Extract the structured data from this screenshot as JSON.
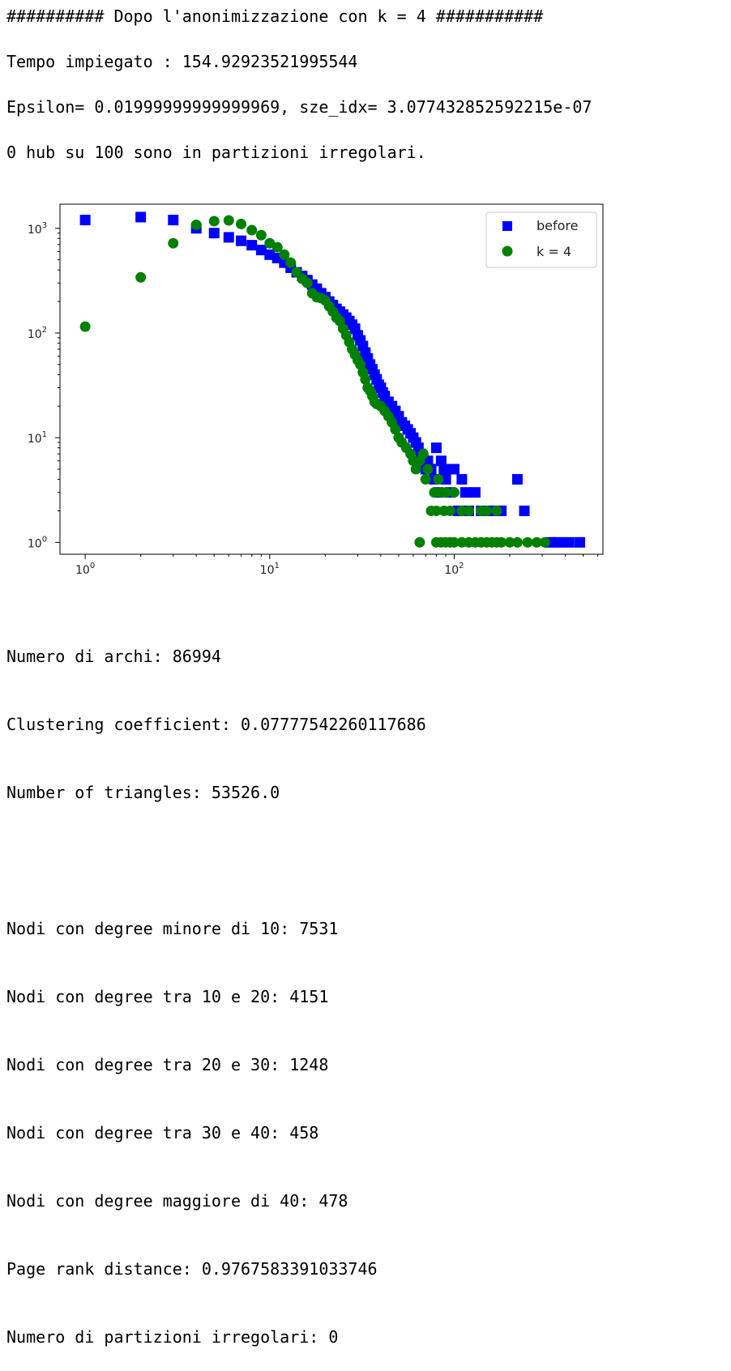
{
  "output": {
    "header": "########## Dopo l'anonimizzazione con k = 4 ###########",
    "time": "Tempo impiegato : 154.92923521995544",
    "epsilon": "Epsilon= 0.01999999999999969, sze_idx= 3.077432852592215e-07",
    "hubs": "0 hub su 100 sono in partizioni irregolari."
  },
  "stats": {
    "archi": "Numero di archi: 86994",
    "clustering": "Clustering coefficient: 0.07777542260117686",
    "triangles": "Number of triangles: 53526.0",
    "deg_lt10": "Nodi con degree minore di 10: 7531",
    "deg_10_20": "Nodi con degree tra 10 e 20: 4151",
    "deg_20_30": "Nodi con degree tra 20 e 30: 1248",
    "deg_30_40": "Nodi con degree tra 30 e 40: 458",
    "deg_gt40": "Nodi con degree maggiore di 40: 478",
    "pagerank": "Page rank distance: 0.9767583391033746",
    "partitions": "Numero di partizioni irregolari: 0"
  },
  "chart_data": {
    "type": "scatter",
    "xscale": "log",
    "yscale": "log",
    "xlim": [
      0.73,
      640
    ],
    "ylim": [
      0.77,
      1700
    ],
    "xticks": [
      {
        "v": 1,
        "b": "10",
        "e": "0"
      },
      {
        "v": 10,
        "b": "10",
        "e": "1"
      },
      {
        "v": 100,
        "b": "10",
        "e": "2"
      }
    ],
    "yticks": [
      {
        "v": 1,
        "b": "10",
        "e": "0"
      },
      {
        "v": 10,
        "b": "10",
        "e": "1"
      },
      {
        "v": 100,
        "b": "10",
        "e": "2"
      },
      {
        "v": 1000,
        "b": "10",
        "e": "3"
      }
    ],
    "legend": "top-right",
    "series": [
      {
        "name": "before",
        "marker": "square",
        "color": "#0000ff",
        "points": [
          [
            1,
            1200
          ],
          [
            2,
            1280
          ],
          [
            3,
            1200
          ],
          [
            4,
            1000
          ],
          [
            5,
            900
          ],
          [
            6,
            820
          ],
          [
            7,
            760
          ],
          [
            8,
            690
          ],
          [
            9,
            620
          ],
          [
            10,
            560
          ],
          [
            11,
            520
          ],
          [
            12,
            470
          ],
          [
            13,
            420
          ],
          [
            14,
            380
          ],
          [
            15,
            350
          ],
          [
            16,
            320
          ],
          [
            17,
            290
          ],
          [
            18,
            265
          ],
          [
            19,
            240
          ],
          [
            20,
            220
          ],
          [
            21,
            200
          ],
          [
            22,
            185
          ],
          [
            23,
            170
          ],
          [
            24,
            160
          ],
          [
            25,
            150
          ],
          [
            26,
            140
          ],
          [
            27,
            130
          ],
          [
            28,
            120
          ],
          [
            29,
            110
          ],
          [
            30,
            95
          ],
          [
            31,
            85
          ],
          [
            32,
            75
          ],
          [
            33,
            65
          ],
          [
            34,
            57
          ],
          [
            35,
            50
          ],
          [
            36,
            45
          ],
          [
            37,
            40
          ],
          [
            38,
            36
          ],
          [
            39,
            32
          ],
          [
            40,
            30
          ],
          [
            41,
            27
          ],
          [
            42,
            25
          ],
          [
            44,
            22
          ],
          [
            46,
            20
          ],
          [
            48,
            18
          ],
          [
            50,
            16
          ],
          [
            52,
            14
          ],
          [
            54,
            13
          ],
          [
            56,
            12
          ],
          [
            58,
            11
          ],
          [
            60,
            10
          ],
          [
            62,
            9
          ],
          [
            64,
            8
          ],
          [
            66,
            7
          ],
          [
            68,
            6
          ],
          [
            70,
            5
          ],
          [
            72,
            6
          ],
          [
            75,
            5
          ],
          [
            78,
            4
          ],
          [
            80,
            8
          ],
          [
            82,
            3
          ],
          [
            85,
            6
          ],
          [
            88,
            5
          ],
          [
            90,
            4
          ],
          [
            95,
            3
          ],
          [
            100,
            5
          ],
          [
            105,
            2
          ],
          [
            110,
            4
          ],
          [
            115,
            3
          ],
          [
            120,
            2
          ],
          [
            130,
            3
          ],
          [
            140,
            2
          ],
          [
            160,
            2
          ],
          [
            180,
            2
          ],
          [
            220,
            4
          ],
          [
            240,
            2
          ],
          [
            330,
            1
          ],
          [
            370,
            1
          ],
          [
            420,
            1
          ],
          [
            480,
            1
          ]
        ]
      },
      {
        "name": "k = 4",
        "marker": "circle",
        "color": "#008000",
        "points": [
          [
            1,
            115
          ],
          [
            2,
            340
          ],
          [
            3,
            720
          ],
          [
            4,
            1080
          ],
          [
            5,
            1170
          ],
          [
            6,
            1190
          ],
          [
            7,
            1100
          ],
          [
            8,
            960
          ],
          [
            9,
            860
          ],
          [
            10,
            720
          ],
          [
            11,
            660
          ],
          [
            12,
            560
          ],
          [
            13,
            470
          ],
          [
            14,
            380
          ],
          [
            15,
            330
          ],
          [
            16,
            300
          ],
          [
            17,
            240
          ],
          [
            18,
            220
          ],
          [
            19,
            215
          ],
          [
            20,
            205
          ],
          [
            21,
            180
          ],
          [
            22,
            160
          ],
          [
            23,
            140
          ],
          [
            24,
            130
          ],
          [
            25,
            110
          ],
          [
            26,
            95
          ],
          [
            27,
            82
          ],
          [
            28,
            70
          ],
          [
            29,
            62
          ],
          [
            30,
            55
          ],
          [
            31,
            50
          ],
          [
            32,
            42
          ],
          [
            33,
            36
          ],
          [
            34,
            30
          ],
          [
            35,
            28
          ],
          [
            36,
            25
          ],
          [
            37,
            22
          ],
          [
            38,
            21
          ],
          [
            40,
            20
          ],
          [
            42,
            18
          ],
          [
            44,
            16
          ],
          [
            46,
            14
          ],
          [
            48,
            12
          ],
          [
            50,
            10
          ],
          [
            52,
            9
          ],
          [
            55,
            8
          ],
          [
            58,
            7
          ],
          [
            60,
            6
          ],
          [
            62,
            5
          ],
          [
            65,
            6
          ],
          [
            68,
            7
          ],
          [
            70,
            4
          ],
          [
            72,
            5
          ],
          [
            75,
            2
          ],
          [
            78,
            3
          ],
          [
            80,
            2
          ],
          [
            82,
            4
          ],
          [
            85,
            3
          ],
          [
            88,
            2
          ],
          [
            90,
            3
          ],
          [
            95,
            2
          ],
          [
            100,
            3
          ],
          [
            110,
            2
          ],
          [
            120,
            2
          ],
          [
            140,
            2
          ],
          [
            150,
            2
          ],
          [
            170,
            2
          ],
          [
            65,
            1
          ],
          [
            80,
            1
          ],
          [
            85,
            1
          ],
          [
            90,
            1
          ],
          [
            95,
            1
          ],
          [
            100,
            1
          ],
          [
            110,
            1
          ],
          [
            120,
            1
          ],
          [
            130,
            1
          ],
          [
            140,
            1
          ],
          [
            150,
            1
          ],
          [
            160,
            1
          ],
          [
            170,
            1
          ],
          [
            180,
            1
          ],
          [
            200,
            1
          ],
          [
            220,
            1
          ],
          [
            250,
            1
          ],
          [
            280,
            1
          ],
          [
            310,
            1
          ]
        ]
      }
    ]
  }
}
